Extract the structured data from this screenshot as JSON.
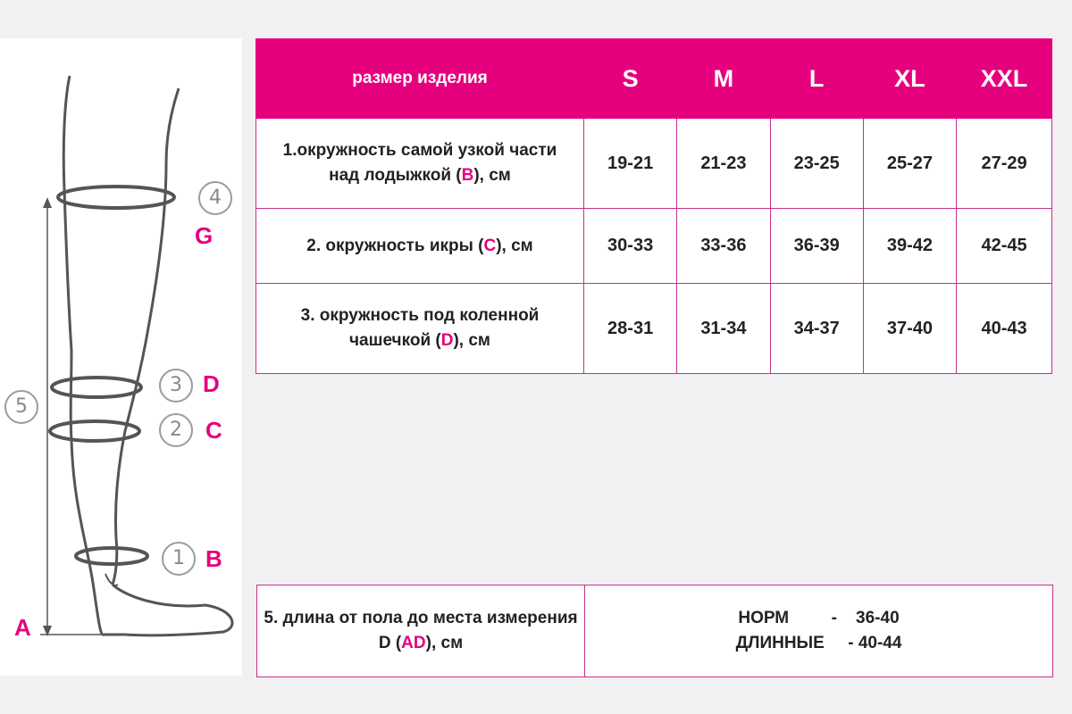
{
  "diagram": {
    "labels": {
      "a": "A",
      "b": "B",
      "c": "C",
      "d": "D",
      "g": "G"
    },
    "numbers": {
      "n1": "1",
      "n2": "2",
      "n3": "3",
      "n4": "4",
      "n5": "5"
    }
  },
  "table": {
    "header": "размер изделия",
    "sizes": [
      "S",
      "M",
      "L",
      "XL",
      "XXL"
    ],
    "rows": [
      {
        "pre": "1.окружность самой узкой части над лодыжкой (",
        "hl": "B",
        "post": "), см",
        "values": [
          "19-21",
          "21-23",
          "23-25",
          "25-27",
          "27-29"
        ]
      },
      {
        "pre": "2. окружность икры (",
        "hl": "C",
        "post": "), см",
        "values": [
          "30-33",
          "33-36",
          "36-39",
          "39-42",
          "42-45"
        ]
      },
      {
        "pre": "3. окружность под коленной чашечкой (",
        "hl": "D",
        "post": "), см",
        "values": [
          "28-31",
          "31-34",
          "34-37",
          "37-40",
          "40-43"
        ]
      }
    ]
  },
  "length": {
    "pre": "5. длина от пола до места измерения D (",
    "hl": "AD",
    "post": "), см",
    "norm": "НОРМ         -    36-40",
    "long": "ДЛИННЫЕ     - 40-44"
  },
  "colors": {
    "accent": "#e6007e",
    "border": "#c62f8e",
    "background": "#f1f1f3"
  }
}
